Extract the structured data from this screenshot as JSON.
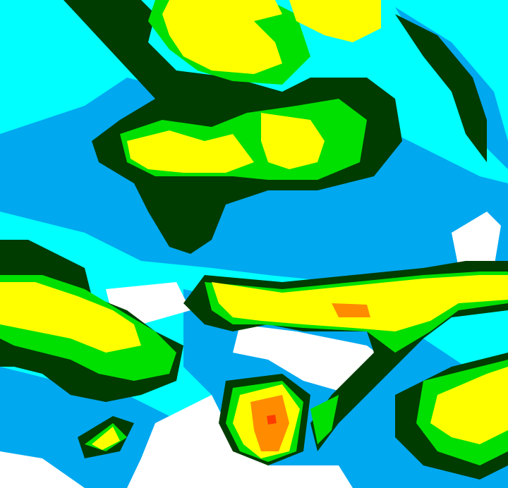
{
  "map": {
    "type": "weather-radar-intensity-field",
    "legend_shown": false,
    "colors": {
      "level_1": "#00ffff",
      "level_2": "#00a8f0",
      "level_3": "#ffffff",
      "level_4": "#003c00",
      "level_5": "#00e000",
      "level_6": "#ffff00",
      "level_7": "#ff8c00",
      "level_8": "#ff3c00"
    }
  }
}
